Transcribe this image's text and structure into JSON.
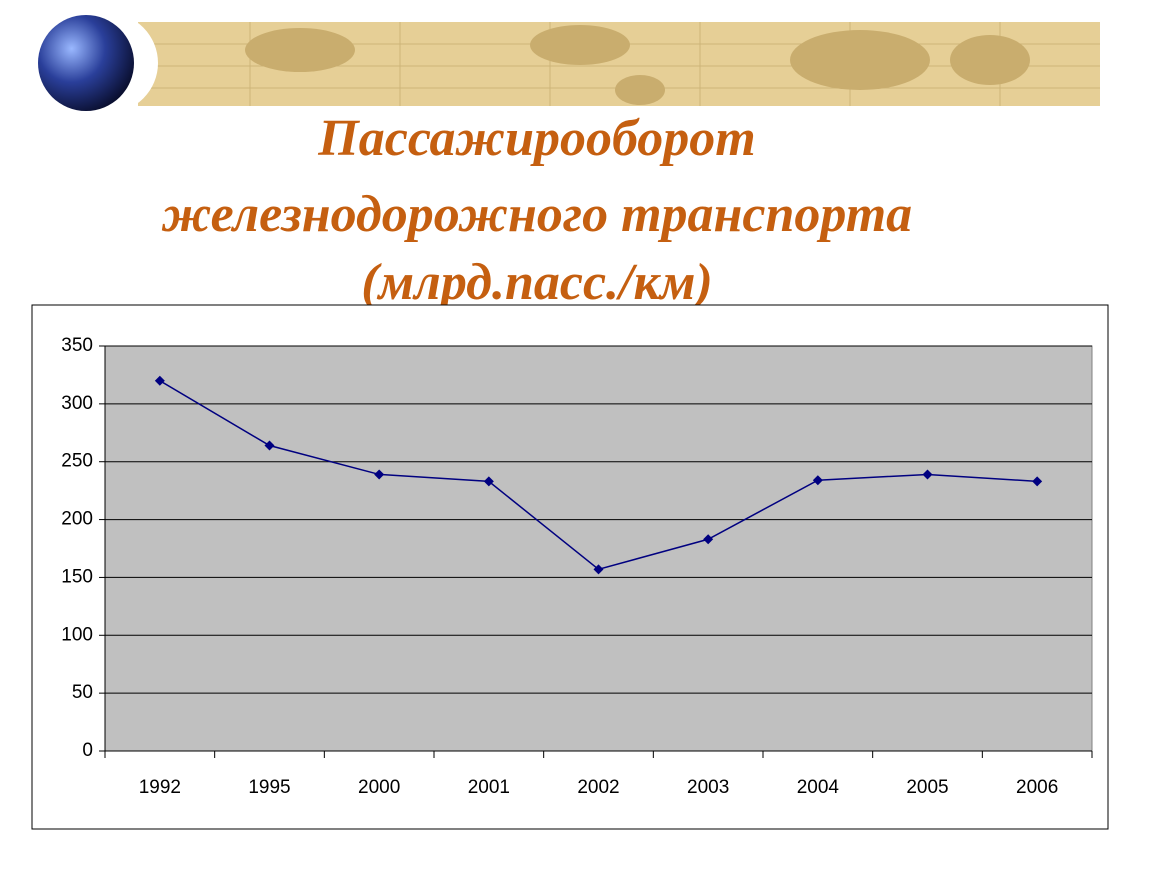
{
  "chart_data": {
    "type": "line",
    "title": [
      "Пассажирооборот",
      "железнодорожного транспорта"
    ],
    "subtitle": "(млрд.пасс./км)",
    "categories": [
      "1992",
      "1995",
      "2000",
      "2001",
      "2002",
      "2003",
      "2004",
      "2005",
      "2006"
    ],
    "values": [
      320,
      264,
      239,
      233,
      157,
      183,
      234,
      239,
      233
    ],
    "color": "#000080",
    "ylim": [
      0,
      350
    ],
    "yticks": [
      0,
      50,
      100,
      150,
      200,
      250,
      300,
      350
    ],
    "grid": true
  }
}
